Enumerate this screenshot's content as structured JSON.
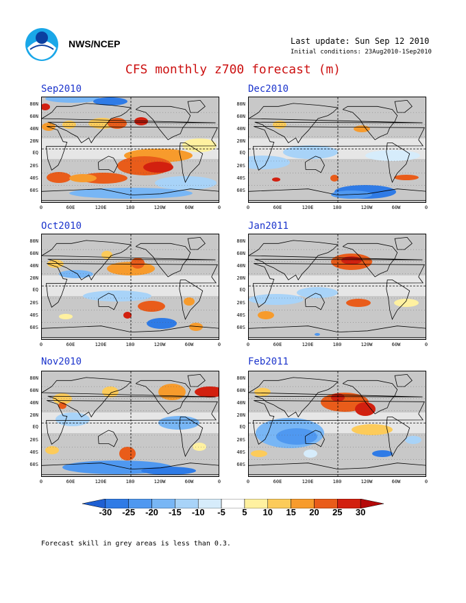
{
  "header": {
    "org": "NWS/NCEP",
    "last_update": "Last update: Sun Sep 12 2010",
    "initial_conditions": "Initial conditions: 23Aug2010-1Sep2010"
  },
  "title": "CFS monthly z700 forecast (m)",
  "axes": {
    "lat_labels": [
      "80N",
      "60N",
      "40N",
      "20N",
      "EQ",
      "20S",
      "40S",
      "60S"
    ],
    "lon_labels": [
      "0",
      "60E",
      "120E",
      "180",
      "120W",
      "60W",
      "0"
    ]
  },
  "panels": [
    {
      "name": "Sep2010"
    },
    {
      "name": "Dec2010"
    },
    {
      "name": "Oct2010"
    },
    {
      "name": "Jan2011"
    },
    {
      "name": "Nov2010"
    },
    {
      "name": "Feb2011"
    }
  ],
  "colorbar": {
    "labels": [
      "-30",
      "-25",
      "-20",
      "-15",
      "-10",
      "-5",
      "5",
      "10",
      "15",
      "20",
      "25",
      "30"
    ],
    "colors": [
      "#1e5fd2",
      "#2f7be6",
      "#4f98f0",
      "#78b6f5",
      "#a8d3f8",
      "#d6ecfb",
      "#ffffff",
      "#fff1a0",
      "#fccb5a",
      "#f79b2c",
      "#e95c1a",
      "#d2200f",
      "#b40a0a"
    ]
  },
  "note": "Forecast skill in grey areas is less than 0.3."
}
